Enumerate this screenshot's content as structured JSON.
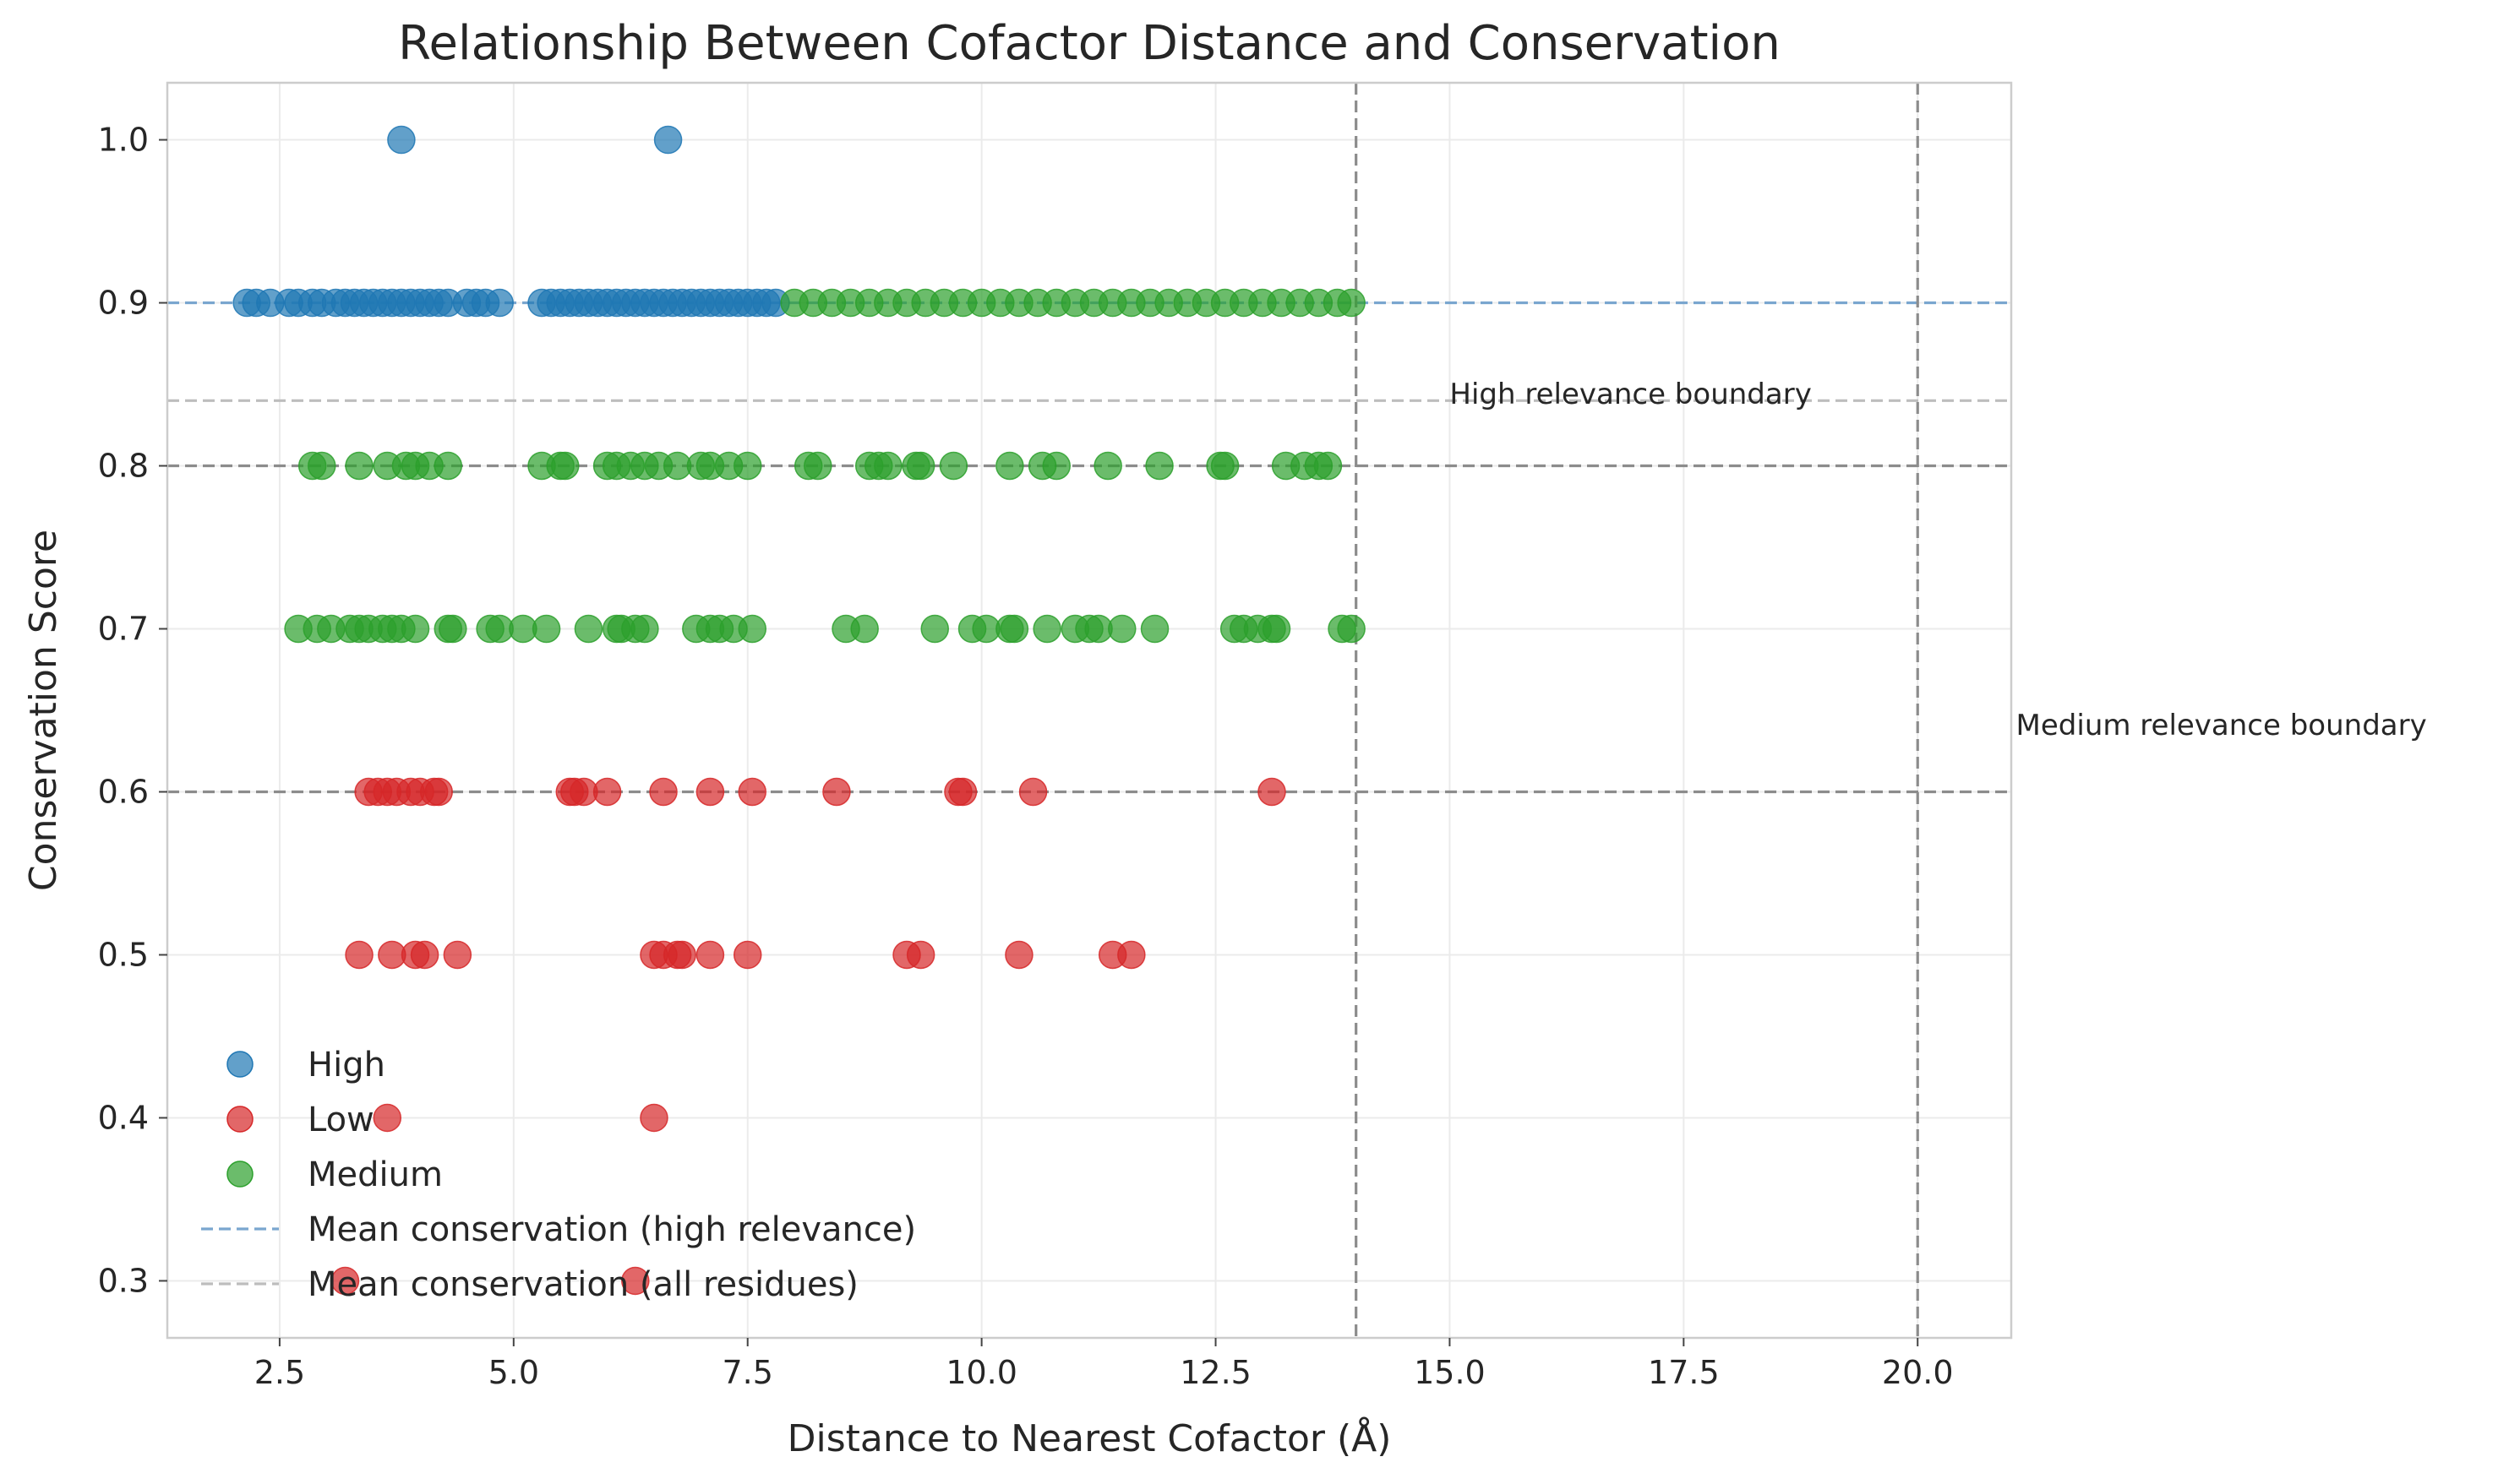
{
  "chart_data": {
    "type": "scatter",
    "title": "Relationship Between Cofactor Distance and Conservation",
    "xlabel": "Distance to Nearest Cofactor (Å)",
    "ylabel": "Conservation Score",
    "xlim": [
      1.3,
      21.0
    ],
    "ylim": [
      0.265,
      1.035
    ],
    "xticks": [
      2.5,
      5.0,
      7.5,
      10.0,
      12.5,
      15.0,
      17.5,
      20.0
    ],
    "xtick_labels": [
      "2.5",
      "5.0",
      "7.5",
      "10.0",
      "12.5",
      "15.0",
      "17.5",
      "20.0"
    ],
    "yticks": [
      0.3,
      0.4,
      0.5,
      0.6,
      0.7,
      0.8,
      0.9,
      1.0
    ],
    "ytick_labels": [
      "0.3",
      "0.4",
      "0.5",
      "0.6",
      "0.7",
      "0.8",
      "0.9",
      "1.0"
    ],
    "grid": true,
    "legend_position": "lower-left",
    "colors": {
      "High": "#1f77b4",
      "Low": "#d62728",
      "Medium": "#2ca02c",
      "mean_high": "#7aa6cf",
      "mean_all": "#bdbdbd",
      "boundary": "#8c8c8c"
    },
    "series": [
      {
        "name": "High",
        "points": [
          [
            3.8,
            1.0
          ],
          [
            6.65,
            1.0
          ],
          [
            2.15,
            0.9
          ],
          [
            2.25,
            0.9
          ],
          [
            2.4,
            0.9
          ],
          [
            2.6,
            0.9
          ],
          [
            2.7,
            0.9
          ],
          [
            2.85,
            0.9
          ],
          [
            2.95,
            0.9
          ],
          [
            3.1,
            0.9
          ],
          [
            3.2,
            0.9
          ],
          [
            3.3,
            0.9
          ],
          [
            3.4,
            0.9
          ],
          [
            3.5,
            0.9
          ],
          [
            3.6,
            0.9
          ],
          [
            3.7,
            0.9
          ],
          [
            3.8,
            0.9
          ],
          [
            3.9,
            0.9
          ],
          [
            4.0,
            0.9
          ],
          [
            4.1,
            0.9
          ],
          [
            4.2,
            0.9
          ],
          [
            4.3,
            0.9
          ],
          [
            4.5,
            0.9
          ],
          [
            4.6,
            0.9
          ],
          [
            4.7,
            0.9
          ],
          [
            4.85,
            0.9
          ],
          [
            5.3,
            0.9
          ],
          [
            5.4,
            0.9
          ],
          [
            5.5,
            0.9
          ],
          [
            5.6,
            0.9
          ],
          [
            5.7,
            0.9
          ],
          [
            5.8,
            0.9
          ],
          [
            5.9,
            0.9
          ],
          [
            6.0,
            0.9
          ],
          [
            6.1,
            0.9
          ],
          [
            6.2,
            0.9
          ],
          [
            6.3,
            0.9
          ],
          [
            6.4,
            0.9
          ],
          [
            6.5,
            0.9
          ],
          [
            6.6,
            0.9
          ],
          [
            6.7,
            0.9
          ],
          [
            6.8,
            0.9
          ],
          [
            6.9,
            0.9
          ],
          [
            7.0,
            0.9
          ],
          [
            7.1,
            0.9
          ],
          [
            7.2,
            0.9
          ],
          [
            7.3,
            0.9
          ],
          [
            7.4,
            0.9
          ],
          [
            7.5,
            0.9
          ],
          [
            7.6,
            0.9
          ],
          [
            7.7,
            0.9
          ],
          [
            7.8,
            0.9
          ]
        ]
      },
      {
        "name": "Low",
        "points": [
          [
            3.45,
            0.6
          ],
          [
            3.55,
            0.6
          ],
          [
            3.65,
            0.6
          ],
          [
            3.75,
            0.6
          ],
          [
            3.9,
            0.6
          ],
          [
            4.0,
            0.6
          ],
          [
            4.15,
            0.6
          ],
          [
            4.2,
            0.6
          ],
          [
            5.6,
            0.6
          ],
          [
            5.65,
            0.6
          ],
          [
            5.75,
            0.6
          ],
          [
            6.0,
            0.6
          ],
          [
            6.6,
            0.6
          ],
          [
            7.1,
            0.6
          ],
          [
            7.55,
            0.6
          ],
          [
            8.45,
            0.6
          ],
          [
            9.75,
            0.6
          ],
          [
            9.8,
            0.6
          ],
          [
            10.55,
            0.6
          ],
          [
            13.1,
            0.6
          ],
          [
            3.35,
            0.5
          ],
          [
            3.7,
            0.5
          ],
          [
            3.95,
            0.5
          ],
          [
            4.05,
            0.5
          ],
          [
            4.4,
            0.5
          ],
          [
            6.5,
            0.5
          ],
          [
            6.6,
            0.5
          ],
          [
            6.75,
            0.5
          ],
          [
            6.8,
            0.5
          ],
          [
            7.1,
            0.5
          ],
          [
            7.5,
            0.5
          ],
          [
            9.2,
            0.5
          ],
          [
            9.35,
            0.5
          ],
          [
            10.4,
            0.5
          ],
          [
            11.4,
            0.5
          ],
          [
            11.6,
            0.5
          ],
          [
            3.65,
            0.4
          ],
          [
            6.5,
            0.4
          ],
          [
            3.2,
            0.3
          ],
          [
            6.3,
            0.3
          ]
        ]
      },
      {
        "name": "Medium",
        "points": [
          [
            8.0,
            0.9
          ],
          [
            8.2,
            0.9
          ],
          [
            8.4,
            0.9
          ],
          [
            8.6,
            0.9
          ],
          [
            8.8,
            0.9
          ],
          [
            9.0,
            0.9
          ],
          [
            9.2,
            0.9
          ],
          [
            9.4,
            0.9
          ],
          [
            9.6,
            0.9
          ],
          [
            9.8,
            0.9
          ],
          [
            10.0,
            0.9
          ],
          [
            10.2,
            0.9
          ],
          [
            10.4,
            0.9
          ],
          [
            10.6,
            0.9
          ],
          [
            10.8,
            0.9
          ],
          [
            11.0,
            0.9
          ],
          [
            11.2,
            0.9
          ],
          [
            11.4,
            0.9
          ],
          [
            11.6,
            0.9
          ],
          [
            11.8,
            0.9
          ],
          [
            12.0,
            0.9
          ],
          [
            12.2,
            0.9
          ],
          [
            12.4,
            0.9
          ],
          [
            12.6,
            0.9
          ],
          [
            12.8,
            0.9
          ],
          [
            13.0,
            0.9
          ],
          [
            13.2,
            0.9
          ],
          [
            13.4,
            0.9
          ],
          [
            13.6,
            0.9
          ],
          [
            13.8,
            0.9
          ],
          [
            13.95,
            0.9
          ],
          [
            2.85,
            0.8
          ],
          [
            2.95,
            0.8
          ],
          [
            3.35,
            0.8
          ],
          [
            3.65,
            0.8
          ],
          [
            3.85,
            0.8
          ],
          [
            3.95,
            0.8
          ],
          [
            4.1,
            0.8
          ],
          [
            4.3,
            0.8
          ],
          [
            5.3,
            0.8
          ],
          [
            5.5,
            0.8
          ],
          [
            5.55,
            0.8
          ],
          [
            6.0,
            0.8
          ],
          [
            6.1,
            0.8
          ],
          [
            6.25,
            0.8
          ],
          [
            6.4,
            0.8
          ],
          [
            6.55,
            0.8
          ],
          [
            6.75,
            0.8
          ],
          [
            7.0,
            0.8
          ],
          [
            7.1,
            0.8
          ],
          [
            7.3,
            0.8
          ],
          [
            7.5,
            0.8
          ],
          [
            8.15,
            0.8
          ],
          [
            8.25,
            0.8
          ],
          [
            8.8,
            0.8
          ],
          [
            8.9,
            0.8
          ],
          [
            9.0,
            0.8
          ],
          [
            9.3,
            0.8
          ],
          [
            9.35,
            0.8
          ],
          [
            9.7,
            0.8
          ],
          [
            10.3,
            0.8
          ],
          [
            10.65,
            0.8
          ],
          [
            10.8,
            0.8
          ],
          [
            11.35,
            0.8
          ],
          [
            11.9,
            0.8
          ],
          [
            12.55,
            0.8
          ],
          [
            12.6,
            0.8
          ],
          [
            13.25,
            0.8
          ],
          [
            13.45,
            0.8
          ],
          [
            13.6,
            0.8
          ],
          [
            13.7,
            0.8
          ],
          [
            2.7,
            0.7
          ],
          [
            2.9,
            0.7
          ],
          [
            3.05,
            0.7
          ],
          [
            3.25,
            0.7
          ],
          [
            3.35,
            0.7
          ],
          [
            3.45,
            0.7
          ],
          [
            3.6,
            0.7
          ],
          [
            3.7,
            0.7
          ],
          [
            3.8,
            0.7
          ],
          [
            3.95,
            0.7
          ],
          [
            4.3,
            0.7
          ],
          [
            4.35,
            0.7
          ],
          [
            4.75,
            0.7
          ],
          [
            4.85,
            0.7
          ],
          [
            5.1,
            0.7
          ],
          [
            5.35,
            0.7
          ],
          [
            5.8,
            0.7
          ],
          [
            6.1,
            0.7
          ],
          [
            6.15,
            0.7
          ],
          [
            6.3,
            0.7
          ],
          [
            6.4,
            0.7
          ],
          [
            6.95,
            0.7
          ],
          [
            7.1,
            0.7
          ],
          [
            7.2,
            0.7
          ],
          [
            7.35,
            0.7
          ],
          [
            7.55,
            0.7
          ],
          [
            8.55,
            0.7
          ],
          [
            8.75,
            0.7
          ],
          [
            9.5,
            0.7
          ],
          [
            9.9,
            0.7
          ],
          [
            10.05,
            0.7
          ],
          [
            10.3,
            0.7
          ],
          [
            10.35,
            0.7
          ],
          [
            10.7,
            0.7
          ],
          [
            11.0,
            0.7
          ],
          [
            11.15,
            0.7
          ],
          [
            11.25,
            0.7
          ],
          [
            11.5,
            0.7
          ],
          [
            11.85,
            0.7
          ],
          [
            12.7,
            0.7
          ],
          [
            12.8,
            0.7
          ],
          [
            12.95,
            0.7
          ],
          [
            13.1,
            0.7
          ],
          [
            13.15,
            0.7
          ],
          [
            13.85,
            0.7
          ],
          [
            13.95,
            0.7
          ]
        ]
      }
    ],
    "reference_lines": [
      {
        "orientation": "horizontal",
        "value": 0.9,
        "style": "dashed",
        "color": "mean_high",
        "legend_label": "Mean conservation (high relevance)"
      },
      {
        "orientation": "horizontal",
        "value": 0.84,
        "style": "dashed",
        "color": "mean_all",
        "legend_label": "Mean conservation (all residues)"
      },
      {
        "orientation": "horizontal",
        "value": 0.8,
        "style": "dashed",
        "color": "boundary"
      },
      {
        "orientation": "horizontal",
        "value": 0.6,
        "style": "dashed",
        "color": "boundary"
      },
      {
        "orientation": "vertical",
        "value": 14.0,
        "style": "dashed",
        "color": "boundary"
      },
      {
        "orientation": "vertical",
        "value": 20.0,
        "style": "dashed",
        "color": "boundary"
      }
    ],
    "annotations": [
      {
        "text": "High relevance boundary",
        "x": 15.0,
        "y": 0.838
      },
      {
        "text": "Medium relevance boundary",
        "x": 21.05,
        "y": 0.635
      }
    ],
    "legend": [
      {
        "label": "High",
        "marker": "circle",
        "color": "High"
      },
      {
        "label": "Low",
        "marker": "circle",
        "color": "Low"
      },
      {
        "label": "Medium",
        "marker": "circle",
        "color": "Medium"
      },
      {
        "label": "Mean conservation (high relevance)",
        "marker": "dashed-line",
        "color": "mean_high"
      },
      {
        "label": "Mean conservation (all residues)",
        "marker": "dashed-line",
        "color": "mean_all"
      }
    ]
  }
}
